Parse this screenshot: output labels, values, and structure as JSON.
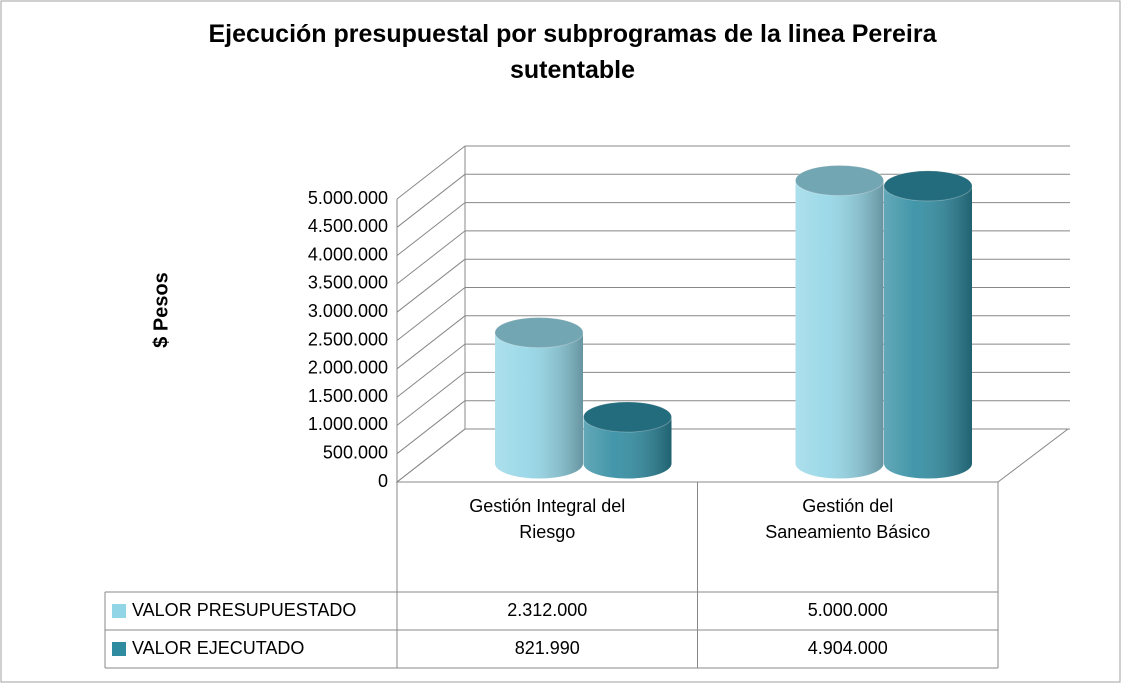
{
  "chart_data": {
    "type": "bar3d",
    "title": "Ejecución presupuestal por subprogramas de la linea Pereira sutentable",
    "y_label": "$ Pesos",
    "categories": [
      "Gestión Integral del Riesgo",
      "Gestión del Saneamiento Básico"
    ],
    "series": [
      {
        "name": "VALOR PRESUPUESTADO",
        "color": "#92d5e6",
        "values": [
          2312000,
          5000000
        ],
        "value_labels": [
          "2.312.000",
          "5.000.000"
        ]
      },
      {
        "name": "VALOR EJECUTADO",
        "color": "#2e8ba0",
        "values": [
          821990,
          4904000
        ],
        "value_labels": [
          "821.990",
          "4.904.000"
        ]
      }
    ],
    "ylim": [
      0,
      5000000
    ],
    "yticks": [
      0,
      {
        "value": 500000,
        "label": "500.000"
      },
      {
        "value": 1000000,
        "label": "1.000.000"
      },
      {
        "value": 1500000,
        "label": "1.500.000"
      },
      {
        "value": 2000000,
        "label": "2.000.000"
      },
      {
        "value": 2500000,
        "label": "2.500.000"
      },
      {
        "value": 3000000,
        "label": "3.000.000"
      },
      {
        "value": 3500000,
        "label": "3.500.000"
      },
      {
        "value": 4000000,
        "label": "4.000.000"
      },
      {
        "value": 4500000,
        "label": "4.500.000"
      },
      {
        "value": 5000000,
        "label": "5.000.000"
      }
    ],
    "grid": true,
    "data_table": true
  }
}
